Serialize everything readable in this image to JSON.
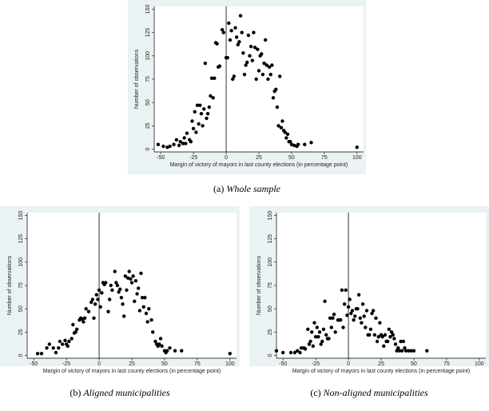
{
  "chart_data": [
    {
      "type": "scatter",
      "caption_label": "(a)",
      "caption": "Whole sample",
      "x_label": "Margin of victory of mayors in last county elections (in percentage point)",
      "y_label": "Number of observations",
      "color": "#000000",
      "vline": 0,
      "xlim": [
        -55,
        105
      ],
      "ylim": [
        -3,
        153
      ],
      "xticks": [
        -50,
        -25,
        0,
        25,
        50,
        75,
        100
      ],
      "yticks": [
        0,
        25,
        50,
        75,
        100,
        125,
        150
      ],
      "x": [
        -52,
        -48,
        -45,
        -43,
        -40,
        -38,
        -36,
        -35,
        -33,
        -32,
        -31,
        -30,
        -28,
        -27,
        -26,
        -25,
        -24,
        -23,
        -22,
        -21,
        -20,
        -19,
        -18,
        -17,
        -16,
        -15,
        -14,
        -13,
        -12,
        -11,
        -10,
        -9,
        -8,
        -7,
        -6,
        -5,
        -3,
        -2,
        0,
        1,
        2,
        3,
        4,
        5,
        6,
        7,
        8,
        9,
        10,
        11,
        12,
        13,
        14,
        15,
        16,
        17,
        18,
        19,
        20,
        21,
        22,
        23,
        24,
        25,
        26,
        27,
        28,
        29,
        30,
        31,
        32,
        33,
        34,
        35,
        36,
        37,
        38,
        39,
        40,
        41,
        42,
        43,
        44,
        45,
        46,
        47,
        48,
        49,
        50,
        52,
        54,
        55,
        60,
        65,
        100
      ],
      "y": [
        5,
        3,
        2,
        3,
        5,
        10,
        4,
        8,
        6,
        12,
        6,
        17,
        10,
        8,
        30,
        22,
        40,
        18,
        47,
        27,
        47,
        38,
        25,
        43,
        92,
        33,
        38,
        45,
        57,
        76,
        55,
        76,
        114,
        113,
        88,
        89,
        128,
        125,
        98,
        98,
        135,
        117,
        127,
        75,
        78,
        130,
        120,
        112,
        115,
        143,
        125,
        103,
        80,
        90,
        93,
        122,
        100,
        110,
        95,
        125,
        109,
        75,
        107,
        84,
        100,
        102,
        80,
        92,
        117,
        90,
        75,
        88,
        80,
        90,
        55,
        62,
        64,
        45,
        25,
        78,
        23,
        30,
        20,
        18,
        12,
        16,
        8,
        8,
        5,
        4,
        3,
        5,
        5,
        7,
        2
      ]
    },
    {
      "type": "scatter",
      "caption_label": "(b)",
      "caption": "Aligned municipalities",
      "x_label": "Margin of victory of mayors in last county elections (in percentage point)",
      "y_label": "Number of observations",
      "color": "#000000",
      "vline": 0,
      "xlim": [
        -55,
        105
      ],
      "ylim": [
        -3,
        153
      ],
      "xticks": [
        -50,
        -25,
        0,
        25,
        50,
        75,
        100
      ],
      "yticks": [
        0,
        25,
        50,
        75,
        100,
        125,
        150
      ],
      "x": [
        -47,
        -44,
        -40,
        -38,
        -35,
        -33,
        -31,
        -30,
        -28,
        -26,
        -25,
        -24,
        -23,
        -21,
        -20,
        -19,
        -18,
        -17,
        -15,
        -14,
        -13,
        -12,
        -11,
        -10,
        -8,
        -6,
        -5,
        -4,
        -3,
        -2,
        -1,
        0,
        1,
        2,
        3,
        4,
        5,
        7,
        8,
        9,
        10,
        12,
        13,
        14,
        15,
        16,
        17,
        18,
        19,
        20,
        21,
        22,
        23,
        24,
        25,
        26,
        27,
        28,
        29,
        30,
        31,
        32,
        33,
        34,
        35,
        36,
        37,
        38,
        40,
        41,
        43,
        44,
        45,
        46,
        47,
        48,
        50,
        51,
        52,
        54,
        58,
        63,
        100
      ],
      "y": [
        2,
        2,
        8,
        12,
        8,
        3,
        8,
        15,
        12,
        16,
        12,
        10,
        15,
        18,
        33,
        24,
        25,
        28,
        38,
        40,
        39,
        36,
        40,
        50,
        47,
        57,
        60,
        40,
        55,
        65,
        60,
        70,
        52,
        67,
        78,
        76,
        78,
        47,
        60,
        75,
        70,
        90,
        78,
        75,
        68,
        71,
        62,
        55,
        42,
        85,
        70,
        83,
        90,
        82,
        78,
        85,
        58,
        80,
        66,
        72,
        48,
        88,
        62,
        52,
        62,
        45,
        36,
        50,
        38,
        25,
        15,
        12,
        10,
        12,
        18,
        10,
        5,
        3,
        5,
        8,
        5,
        5,
        2
      ]
    },
    {
      "type": "scatter",
      "caption_label": "(c)",
      "caption": "Non-aligned municipalities",
      "x_label": "Margin of victory of mayors in last county elections (in percentage point)",
      "y_label": "Number of observations",
      "color": "#000000",
      "vline": 0,
      "xlim": [
        -55,
        105
      ],
      "ylim": [
        -3,
        153
      ],
      "xticks": [
        -50,
        -25,
        0,
        25,
        50,
        75,
        100
      ],
      "yticks": [
        0,
        25,
        50,
        75,
        100,
        125,
        150
      ],
      "x": [
        -55,
        -50,
        -44,
        -41,
        -39,
        -37,
        -36,
        -34,
        -33,
        -31,
        -30,
        -29,
        -28,
        -27,
        -26,
        -25,
        -24,
        -23,
        -22,
        -21,
        -20,
        -19,
        -18,
        -17,
        -16,
        -15,
        -14,
        -13,
        -12,
        -11,
        -10,
        -8,
        -7,
        -6,
        -5,
        -4,
        -3,
        -2,
        -1,
        0,
        1,
        2,
        3,
        4,
        5,
        6,
        7,
        8,
        9,
        10,
        11,
        12,
        13,
        14,
        15,
        16,
        17,
        18,
        19,
        20,
        21,
        22,
        23,
        24,
        25,
        26,
        27,
        28,
        29,
        30,
        31,
        32,
        33,
        34,
        35,
        36,
        37,
        38,
        39,
        40,
        41,
        42,
        43,
        44,
        46,
        48,
        50,
        60
      ],
      "y": [
        5,
        3,
        3,
        3,
        5,
        3,
        8,
        8,
        7,
        28,
        12,
        15,
        25,
        10,
        35,
        20,
        30,
        20,
        25,
        12,
        15,
        28,
        58,
        22,
        18,
        18,
        40,
        30,
        40,
        44,
        25,
        38,
        38,
        38,
        70,
        30,
        55,
        70,
        43,
        52,
        60,
        45,
        48,
        38,
        42,
        50,
        50,
        65,
        40,
        35,
        55,
        42,
        30,
        48,
        22,
        22,
        28,
        45,
        48,
        22,
        40,
        15,
        20,
        35,
        22,
        20,
        10,
        22,
        15,
        15,
        28,
        20,
        25,
        22,
        18,
        12,
        5,
        8,
        5,
        15,
        5,
        15,
        8,
        5,
        5,
        5,
        5,
        5
      ]
    }
  ]
}
